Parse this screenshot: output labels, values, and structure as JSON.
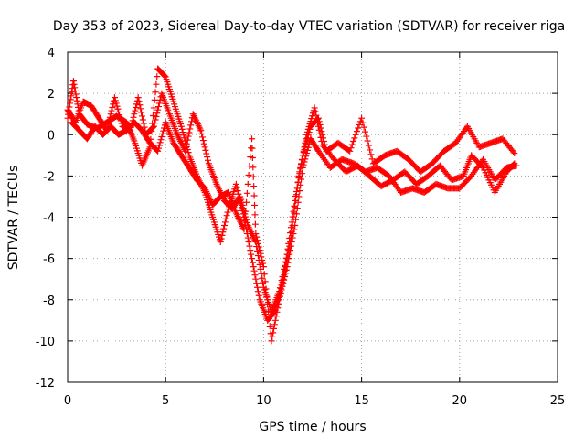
{
  "chart_data": {
    "type": "scatter",
    "title": "Day 353 of 2023, Sidereal Day-to-day VTEC variation (SDTVAR) for receiver riga",
    "xlabel": "GPS time / hours",
    "ylabel": "SDTVAR / TECUs",
    "xlim": [
      0,
      25
    ],
    "ylim": [
      -12,
      4
    ],
    "xticks": [
      "0",
      "5",
      "10",
      "15",
      "20",
      "25"
    ],
    "yticks": [
      "4",
      "2",
      "0",
      "-2",
      "-4",
      "-6",
      "-8",
      "-10",
      "-12"
    ],
    "grid": true,
    "marker": "+",
    "color": "#ff0000",
    "series": [
      {
        "name": "trace-a",
        "points": [
          [
            0.0,
            0.8
          ],
          [
            0.3,
            2.6
          ],
          [
            0.6,
            1.0
          ],
          [
            1.0,
            0.5
          ],
          [
            1.5,
            0.3
          ],
          [
            2.0,
            0.6
          ],
          [
            2.5,
            0.9
          ],
          [
            3.0,
            0.6
          ],
          [
            3.4,
            -0.3
          ],
          [
            3.8,
            -1.5
          ],
          [
            4.2,
            -0.6
          ],
          [
            4.6,
            3.2
          ],
          [
            5.0,
            2.8
          ],
          [
            5.4,
            1.6
          ],
          [
            5.8,
            0.4
          ],
          [
            6.2,
            -1.0
          ],
          [
            6.6,
            -2.0
          ],
          [
            7.0,
            -2.8
          ],
          [
            7.4,
            -4.0
          ],
          [
            7.8,
            -5.2
          ],
          [
            8.2,
            -3.6
          ],
          [
            8.6,
            -2.4
          ],
          [
            9.0,
            -4.0
          ],
          [
            9.4,
            -6.0
          ],
          [
            9.8,
            -8.0
          ],
          [
            10.2,
            -9.0
          ],
          [
            10.6,
            -8.5
          ],
          [
            11.0,
            -7.0
          ],
          [
            11.4,
            -5.0
          ],
          [
            11.8,
            -2.0
          ],
          [
            12.2,
            0.0
          ],
          [
            12.6,
            1.3
          ],
          [
            13.0,
            -0.5
          ],
          [
            13.6,
            -1.2
          ],
          [
            14.2,
            -1.8
          ],
          [
            14.8,
            -1.5
          ],
          [
            15.4,
            -2.0
          ],
          [
            16.0,
            -2.5
          ],
          [
            16.6,
            -2.2
          ],
          [
            17.2,
            -1.8
          ],
          [
            17.8,
            -2.4
          ],
          [
            18.4,
            -2.0
          ],
          [
            19.0,
            -1.5
          ],
          [
            19.6,
            -2.2
          ],
          [
            20.2,
            -2.0
          ],
          [
            20.6,
            -1.0
          ],
          [
            21.2,
            -1.6
          ],
          [
            21.8,
            -2.8
          ],
          [
            22.4,
            -1.8
          ],
          [
            22.8,
            -1.4
          ]
        ]
      },
      {
        "name": "trace-b",
        "points": [
          [
            0.0,
            1.2
          ],
          [
            0.4,
            0.6
          ],
          [
            0.8,
            1.6
          ],
          [
            1.2,
            1.4
          ],
          [
            1.6,
            0.8
          ],
          [
            2.0,
            0.2
          ],
          [
            2.4,
            1.8
          ],
          [
            2.8,
            0.4
          ],
          [
            3.2,
            0.2
          ],
          [
            3.6,
            1.8
          ],
          [
            4.0,
            0.0
          ],
          [
            4.4,
            0.4
          ],
          [
            4.8,
            2.0
          ],
          [
            5.2,
            1.0
          ],
          [
            5.6,
            0.0
          ],
          [
            6.0,
            -0.8
          ],
          [
            6.4,
            1.0
          ],
          [
            6.8,
            0.2
          ],
          [
            7.2,
            -1.4
          ],
          [
            7.6,
            -2.4
          ],
          [
            8.0,
            -3.2
          ],
          [
            8.4,
            -3.6
          ],
          [
            8.8,
            -3.0
          ],
          [
            9.2,
            -4.4
          ],
          [
            9.6,
            -5.2
          ],
          [
            10.0,
            -7.4
          ],
          [
            10.4,
            -8.6
          ],
          [
            10.8,
            -7.6
          ],
          [
            11.2,
            -5.8
          ],
          [
            11.6,
            -3.2
          ],
          [
            12.0,
            -1.0
          ],
          [
            12.4,
            0.4
          ],
          [
            12.8,
            0.8
          ],
          [
            13.2,
            -0.8
          ],
          [
            13.8,
            -0.4
          ],
          [
            14.4,
            -0.8
          ],
          [
            15.0,
            0.8
          ],
          [
            15.6,
            -1.4
          ],
          [
            16.2,
            -1.0
          ],
          [
            16.8,
            -0.8
          ],
          [
            17.4,
            -1.2
          ],
          [
            18.0,
            -1.8
          ],
          [
            18.6,
            -1.4
          ],
          [
            19.2,
            -0.8
          ],
          [
            19.8,
            -0.4
          ],
          [
            20.4,
            0.4
          ],
          [
            21.0,
            -0.6
          ],
          [
            21.6,
            -0.4
          ],
          [
            22.2,
            -0.2
          ],
          [
            22.8,
            -0.9
          ]
        ]
      },
      {
        "name": "trace-c",
        "points": [
          [
            0.2,
            0.6
          ],
          [
            0.6,
            0.2
          ],
          [
            1.0,
            -0.2
          ],
          [
            1.4,
            0.4
          ],
          [
            1.8,
            0.0
          ],
          [
            2.2,
            0.4
          ],
          [
            2.6,
            0.0
          ],
          [
            3.0,
            0.2
          ],
          [
            3.4,
            0.6
          ],
          [
            3.8,
            0.2
          ],
          [
            4.2,
            -0.4
          ],
          [
            4.6,
            -0.8
          ],
          [
            5.0,
            0.6
          ],
          [
            5.4,
            -0.4
          ],
          [
            5.8,
            -1.0
          ],
          [
            6.2,
            -1.6
          ],
          [
            6.6,
            -2.2
          ],
          [
            7.0,
            -2.6
          ],
          [
            7.4,
            -3.4
          ],
          [
            7.8,
            -3.0
          ],
          [
            8.2,
            -2.8
          ],
          [
            8.6,
            -3.8
          ],
          [
            9.0,
            -4.6
          ],
          [
            9.4,
            -0.2
          ],
          [
            9.6,
            -4.8
          ],
          [
            10.0,
            -6.4
          ],
          [
            10.4,
            -10.0
          ],
          [
            10.8,
            -8.0
          ],
          [
            11.2,
            -6.4
          ],
          [
            11.6,
            -4.4
          ],
          [
            12.0,
            -1.6
          ],
          [
            12.4,
            -0.2
          ],
          [
            12.8,
            -0.8
          ],
          [
            13.4,
            -1.6
          ],
          [
            14.0,
            -1.2
          ],
          [
            14.6,
            -1.4
          ],
          [
            15.2,
            -1.8
          ],
          [
            15.8,
            -1.6
          ],
          [
            16.4,
            -2.0
          ],
          [
            17.0,
            -2.8
          ],
          [
            17.6,
            -2.6
          ],
          [
            18.2,
            -2.8
          ],
          [
            18.8,
            -2.4
          ],
          [
            19.4,
            -2.6
          ],
          [
            20.0,
            -2.6
          ],
          [
            20.6,
            -2.0
          ],
          [
            21.2,
            -1.2
          ],
          [
            21.8,
            -2.2
          ],
          [
            22.4,
            -1.6
          ],
          [
            22.9,
            -1.5
          ]
        ]
      }
    ]
  }
}
